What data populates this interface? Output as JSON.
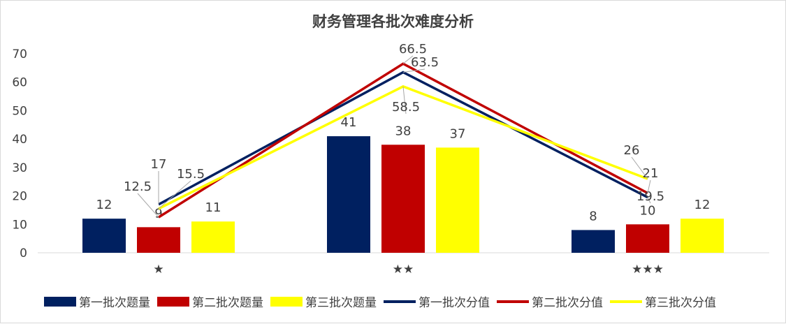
{
  "chart_data": {
    "type": "bar+line",
    "title": "财务管理各批次难度分析",
    "categories": [
      "★",
      "★★",
      "★★★"
    ],
    "ylim": [
      0,
      70
    ],
    "yticks": [
      0,
      10,
      20,
      30,
      40,
      50,
      60,
      70
    ],
    "grid": false,
    "legend": "bottom",
    "bars": [
      {
        "name": "第一批次题量",
        "color": "#002060",
        "values": [
          12,
          41,
          8
        ]
      },
      {
        "name": "第二批次题量",
        "color": "#C00000",
        "values": [
          9,
          38,
          10
        ]
      },
      {
        "name": "第三批次题量",
        "color": "#FFFF00",
        "values": [
          11,
          37,
          12
        ]
      }
    ],
    "lines": [
      {
        "name": "第一批次分值",
        "color": "#002060",
        "values": [
          17,
          63.5,
          19.5
        ]
      },
      {
        "name": "第二批次分值",
        "color": "#C00000",
        "values": [
          12.5,
          66.5,
          21
        ]
      },
      {
        "name": "第三批次分值",
        "color": "#FFFF00",
        "values": [
          15.5,
          58.5,
          26
        ]
      }
    ]
  }
}
